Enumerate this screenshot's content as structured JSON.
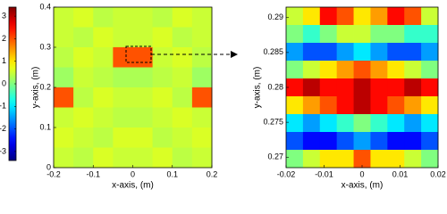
{
  "chart_data": [
    {
      "type": "colorbar",
      "colormap": "jet",
      "ylim": [
        -3.4,
        3.4
      ],
      "yticks": [
        -3,
        -2,
        -1,
        0,
        1,
        2,
        3
      ]
    },
    {
      "type": "heatmap",
      "colormap": "jet",
      "xlabel": "x-axis, (m)",
      "ylabel": "y-axis, (m)",
      "xlim": [
        -0.2,
        0.2
      ],
      "ylim": [
        0,
        0.4
      ],
      "xticks": [
        -0.2,
        -0.1,
        0,
        0.1,
        0.2
      ],
      "yticks": [
        0,
        0.1,
        0.2,
        0.3,
        0.4
      ],
      "z": [
        [
          0.5,
          0.6,
          0.4,
          0.5,
          0.5,
          0.4,
          0.6,
          0.5
        ],
        [
          0.5,
          0.4,
          0.6,
          0.5,
          0.5,
          0.6,
          0.4,
          0.5
        ],
        [
          0.4,
          0.6,
          0.5,
          2,
          2,
          0.5,
          0.6,
          0.4
        ],
        [
          0.2,
          0.5,
          0.4,
          0.3,
          0.3,
          0.4,
          0.5,
          0.2
        ],
        [
          2,
          0.4,
          0.6,
          0.5,
          0.5,
          0.6,
          0.4,
          2
        ],
        [
          0.5,
          0.6,
          0.5,
          0.4,
          0.4,
          0.5,
          0.6,
          0.5
        ],
        [
          0.6,
          0.5,
          0.4,
          0.6,
          0.6,
          0.4,
          0.5,
          0.6
        ],
        [
          0.5,
          0.4,
          0.6,
          0.5,
          0.5,
          0.6,
          0.4,
          0.5
        ]
      ]
    },
    {
      "type": "heatmap",
      "colormap": "jet",
      "xlabel": "x-axis, (m)",
      "ylabel": "y-axis, (m)",
      "xlim": [
        -0.02,
        0.02
      ],
      "ylim": [
        0.2685,
        0.2915
      ],
      "xticks": [
        -0.02,
        -0.01,
        0,
        0.01,
        0.02
      ],
      "yticks": [
        0.27,
        0.275,
        0.28,
        0.285,
        0.29
      ],
      "z": [
        [
          0.5,
          1,
          2.5,
          2,
          1,
          1.5,
          2.5,
          2,
          0.5
        ],
        [
          0,
          -0.5,
          0,
          0.5,
          0.5,
          0,
          0,
          -0.5,
          -0.5
        ],
        [
          -1.5,
          -2,
          -2,
          -1.5,
          -1,
          -1.5,
          -2,
          -2,
          -1.5
        ],
        [
          0,
          0.5,
          1,
          1.5,
          2,
          1.5,
          1,
          0.5,
          0
        ],
        [
          2.5,
          3,
          2.5,
          2.5,
          3,
          2.5,
          2.5,
          3,
          2.5
        ],
        [
          1,
          1.5,
          2,
          2.5,
          3,
          2.5,
          2,
          1.5,
          1
        ],
        [
          -1,
          -1.5,
          -1,
          -0.5,
          0,
          -0.5,
          -1,
          -1.5,
          -1
        ],
        [
          -2,
          -2.5,
          -2.5,
          -2,
          -1.5,
          -2,
          -2.5,
          -2.5,
          -2
        ],
        [
          0,
          0.5,
          1,
          1,
          2,
          1,
          1,
          0.5,
          0
        ]
      ]
    }
  ]
}
